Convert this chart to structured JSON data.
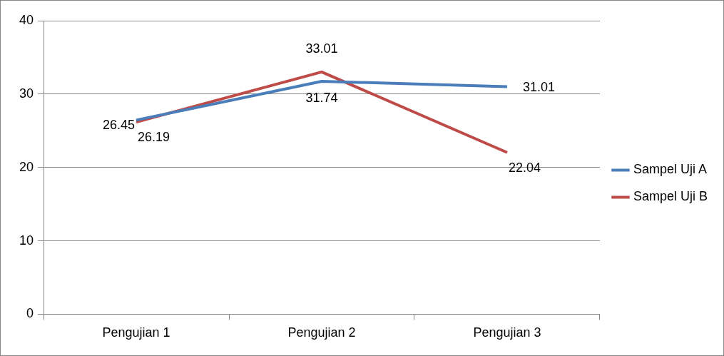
{
  "chart_data": {
    "type": "line",
    "categories": [
      "Pengujian 1",
      "Pengujian 2",
      "Pengujian 3"
    ],
    "series": [
      {
        "name": "Sampel Uji A",
        "color": "#4a7ebb",
        "values": [
          26.45,
          31.74,
          31.01
        ]
      },
      {
        "name": "Sampel Uji B",
        "color": "#be4b48",
        "values": [
          26.19,
          33.01,
          22.04
        ]
      }
    ],
    "ylim": [
      0,
      40
    ],
    "yticks": [
      0,
      10,
      20,
      30,
      40
    ],
    "grid": "y",
    "legend": "right",
    "data_labels": true,
    "marker": "none"
  }
}
